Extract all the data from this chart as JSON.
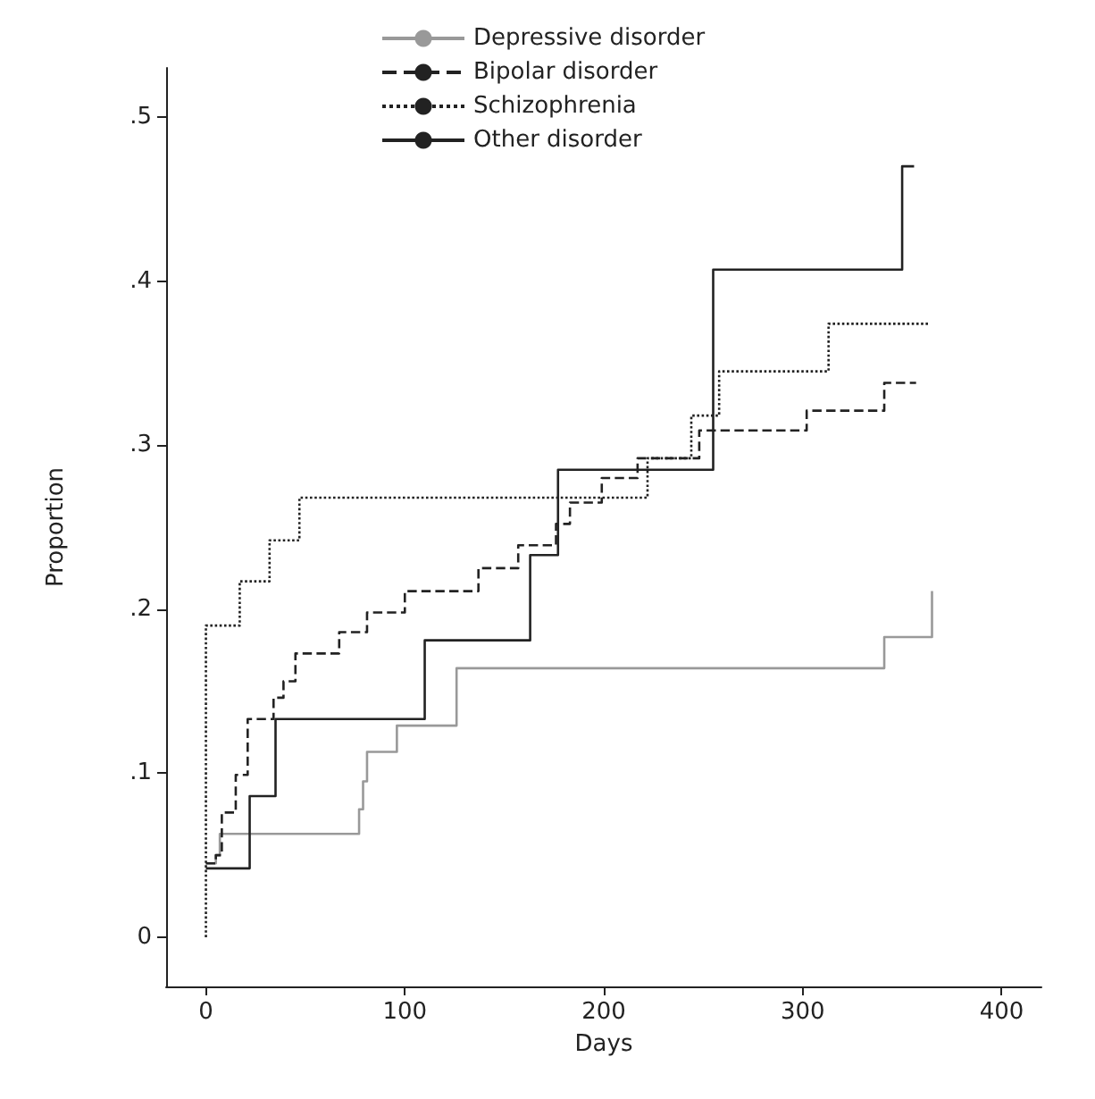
{
  "chart_data": {
    "type": "step",
    "xlabel": "Days",
    "ylabel": "Proportion",
    "legend": "top",
    "grid": false,
    "marker": "none",
    "xlim": [
      -20,
      420
    ],
    "xticks": [
      0,
      100,
      200,
      300,
      400
    ],
    "ylim": [
      -0.03,
      0.53
    ],
    "yticks": [
      0,
      {
        "value": 0.1,
        "label": ".1"
      },
      {
        "value": 0.2,
        "label": ".2"
      },
      {
        "value": 0.3,
        "label": ".3"
      },
      {
        "value": 0.4,
        "label": ".4"
      },
      {
        "value": 0.5,
        "label": ".5"
      }
    ],
    "series": [
      {
        "name": "Depressive disorder",
        "color": "#999999",
        "line_style": "solid",
        "x": [
          0,
          5,
          7,
          77,
          79,
          81,
          96,
          126,
          341,
          365,
          365
        ],
        "values": [
          0.045,
          0.05,
          0.063,
          0.078,
          0.095,
          0.113,
          0.129,
          0.164,
          0.183,
          0.183,
          0.211
        ]
      },
      {
        "name": "Bipolar disorder",
        "color": "#222222",
        "line_style": "dashed",
        "x": [
          0,
          5,
          8,
          15,
          21,
          34,
          39,
          45,
          67,
          81,
          100,
          137,
          157,
          176,
          183,
          199,
          217,
          248,
          302,
          341,
          357
        ],
        "values": [
          0.045,
          0.05,
          0.076,
          0.099,
          0.133,
          0.146,
          0.156,
          0.173,
          0.186,
          0.198,
          0.211,
          0.225,
          0.239,
          0.252,
          0.265,
          0.28,
          0.292,
          0.309,
          0.321,
          0.338,
          0.338
        ]
      },
      {
        "name": "Schizophrenia",
        "color": "#222222",
        "line_style": "dotted",
        "x": [
          0,
          0,
          17,
          32,
          47,
          222,
          244,
          258,
          313,
          364
        ],
        "values": [
          0,
          0.19,
          0.217,
          0.242,
          0.268,
          0.292,
          0.318,
          0.345,
          0.374,
          0.374
        ]
      },
      {
        "name": "Other disorder",
        "color": "#222222",
        "line_style": "solid",
        "x": [
          0,
          22,
          35,
          110,
          163,
          177,
          255,
          350,
          356
        ],
        "values": [
          0.042,
          0.086,
          0.133,
          0.181,
          0.233,
          0.285,
          0.407,
          0.47,
          0.47
        ]
      }
    ]
  }
}
